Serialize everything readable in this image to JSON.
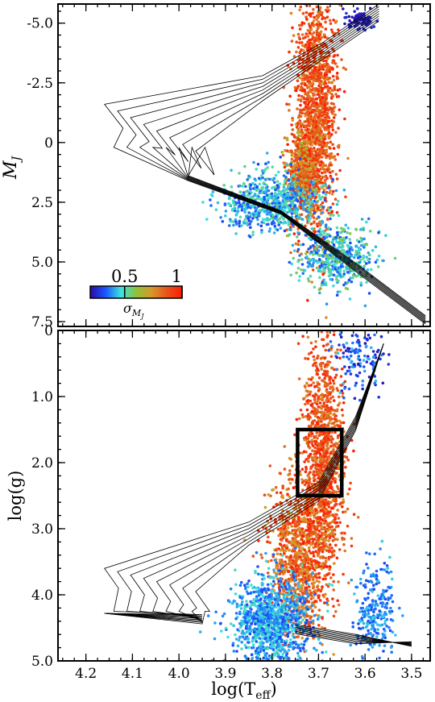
{
  "chart_data": [
    {
      "type": "scatter",
      "panel": "top",
      "xlabel": "",
      "ylabel_main": "M",
      "ylabel_sub": "J",
      "xlim": [
        4.26,
        3.46
      ],
      "ylim": [
        7.7,
        -5.8
      ],
      "x_ticks": [
        4.2,
        4.1,
        4.0,
        3.9,
        3.8,
        3.7,
        3.6,
        3.5
      ],
      "y_ticks": [
        -5.0,
        -2.5,
        0,
        2.5,
        5.0,
        7.5
      ],
      "y_tick_labels": [
        "-5.0",
        "-2.5",
        "0",
        "2.5",
        "5.0",
        "7.5"
      ],
      "colorbar": {
        "tick_labels": [
          "0.5",
          "1"
        ],
        "tick_values": [
          0.5,
          1.0
        ],
        "range": [
          0.2,
          1.0
        ],
        "label_main": "σ",
        "label_sub": "M",
        "label_subsub": "J",
        "colors": [
          "#2a0aa8",
          "#1a56ff",
          "#3be3de",
          "#8fc23a",
          "#d6982c",
          "#e8541c",
          "#ff1a00"
        ]
      },
      "series": [
        {
          "kind": "scatter_cloud",
          "regions": [
            {
              "x_center": 3.705,
              "x_spread": 0.022,
              "y_center": -1.4,
              "y_spread": 2.5,
              "n": 1400,
              "sigma_range": [
                0.75,
                1.0
              ]
            },
            {
              "x_center": 3.735,
              "x_spread": 0.018,
              "y_center": 1.4,
              "y_spread": 0.9,
              "n": 700,
              "sigma_range": [
                0.6,
                1.0
              ]
            },
            {
              "x_center": 3.8,
              "x_spread": 0.05,
              "y_center": 2.5,
              "y_spread": 0.6,
              "n": 700,
              "sigma_range": [
                0.3,
                0.55
              ]
            },
            {
              "x_center": 3.66,
              "x_spread": 0.04,
              "y_center": 4.8,
              "y_spread": 0.6,
              "n": 500,
              "sigma_range": [
                0.3,
                0.6
              ]
            },
            {
              "x_center": 3.61,
              "x_spread": 0.016,
              "y_center": -5.1,
              "y_spread": 0.2,
              "n": 90,
              "sigma_range": [
                0.2,
                0.28
              ]
            }
          ]
        }
      ]
    },
    {
      "type": "scatter",
      "panel": "bottom",
      "xlabel_main": "log(T",
      "xlabel_sub": "eff",
      "xlabel_close": ")",
      "ylabel": "log(g)",
      "xlim": [
        4.26,
        3.46
      ],
      "ylim": [
        5.0,
        0.0
      ],
      "x_ticks": [
        4.2,
        4.1,
        4.0,
        3.9,
        3.8,
        3.7,
        3.6,
        3.5
      ],
      "x_tick_labels": [
        "4.2",
        "4.1",
        "4.0",
        "3.9",
        "3.8",
        "3.7",
        "3.6",
        "3.5"
      ],
      "y_ticks": [
        0,
        1.0,
        2.0,
        3.0,
        4.0,
        5.0
      ],
      "y_tick_labels": [
        "0",
        "1.0",
        "2.0",
        "3.0",
        "4.0",
        "5.0"
      ],
      "box": {
        "x": [
          3.745,
          3.65
        ],
        "y": [
          1.5,
          2.5
        ]
      },
      "series": [
        {
          "kind": "scatter_cloud",
          "regions": [
            {
              "x_center": 3.69,
              "x_spread": 0.022,
              "y_center": 2.0,
              "y_spread": 0.9,
              "n": 1300,
              "sigma_range": [
                0.75,
                1.0
              ]
            },
            {
              "x_center": 3.745,
              "x_spread": 0.03,
              "y_center": 3.5,
              "y_spread": 0.6,
              "n": 1000,
              "sigma_range": [
                0.7,
                1.0
              ]
            },
            {
              "x_center": 3.8,
              "x_spread": 0.04,
              "y_center": 4.4,
              "y_spread": 0.35,
              "n": 1100,
              "sigma_range": [
                0.3,
                0.5
              ]
            },
            {
              "x_center": 3.58,
              "x_spread": 0.02,
              "y_center": 4.3,
              "y_spread": 0.4,
              "n": 250,
              "sigma_range": [
                0.3,
                0.45
              ]
            },
            {
              "x_center": 3.61,
              "x_spread": 0.03,
              "y_center": 0.45,
              "y_spread": 0.25,
              "n": 130,
              "sigma_range": [
                0.2,
                0.45
              ]
            }
          ]
        }
      ]
    }
  ]
}
